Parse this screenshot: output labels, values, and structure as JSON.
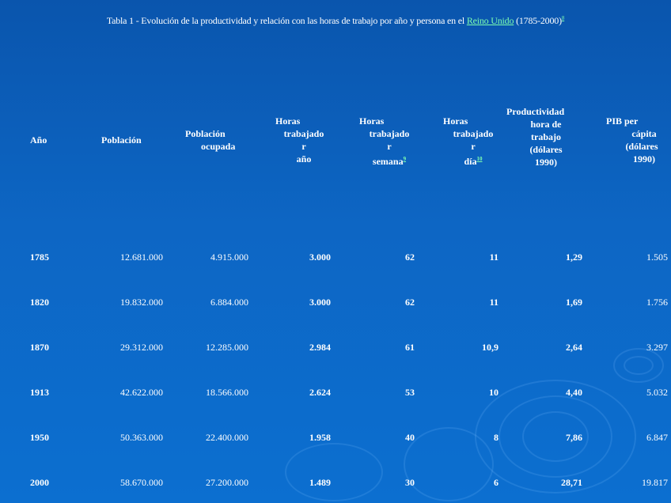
{
  "caption": {
    "prefix": "Tabla 1 - Evolución de la productividad y relación con las horas de trabajo por año y persona en el ",
    "link": "Reino Unido",
    "suffix": " (1785-2000)",
    "ref": "8"
  },
  "headers": {
    "year": "Año",
    "population": "Población",
    "employed": [
      "Población",
      "ocupada"
    ],
    "hours_year": [
      "Horas",
      "trabajado",
      "r",
      "año"
    ],
    "hours_week": [
      "Horas",
      "trabajado",
      "r",
      "semana"
    ],
    "hours_week_ref": "9",
    "hours_day": [
      "Horas",
      "trabajado",
      "r",
      "día"
    ],
    "hours_day_ref": "10",
    "productivity": [
      "Productividad",
      "hora de",
      "trabajo",
      "(dólares",
      "1990)"
    ],
    "gdp": [
      "PIB per",
      "cápita",
      "(dólares",
      "1990)"
    ]
  },
  "rows": [
    {
      "year": "1785",
      "population": "12.681.000",
      "employed": "4.915.000",
      "hours_year": "3.000",
      "hours_week": "62",
      "hours_day": "11",
      "productivity": "1,29",
      "gdp": "1.505"
    },
    {
      "year": "1820",
      "population": "19.832.000",
      "employed": "6.884.000",
      "hours_year": "3.000",
      "hours_week": "62",
      "hours_day": "11",
      "productivity": "1,69",
      "gdp": "1.756"
    },
    {
      "year": "1870",
      "population": "29.312.000",
      "employed": "12.285.000",
      "hours_year": "2.984",
      "hours_week": "61",
      "hours_day": "10,9",
      "productivity": "2,64",
      "gdp": "3.297"
    },
    {
      "year": "1913",
      "population": "42.622.000",
      "employed": "18.566.000",
      "hours_year": "2.624",
      "hours_week": "53",
      "hours_day": "10",
      "productivity": "4,40",
      "gdp": "5.032"
    },
    {
      "year": "1950",
      "population": "50.363.000",
      "employed": "22.400.000",
      "hours_year": "1.958",
      "hours_week": "40",
      "hours_day": "8",
      "productivity": "7,86",
      "gdp": "6.847"
    },
    {
      "year": "2000",
      "population": "58.670.000",
      "employed": "27.200.000",
      "hours_year": "1.489",
      "hours_week": "30",
      "hours_day": "6",
      "productivity": "28,71",
      "gdp": "19.817"
    }
  ]
}
